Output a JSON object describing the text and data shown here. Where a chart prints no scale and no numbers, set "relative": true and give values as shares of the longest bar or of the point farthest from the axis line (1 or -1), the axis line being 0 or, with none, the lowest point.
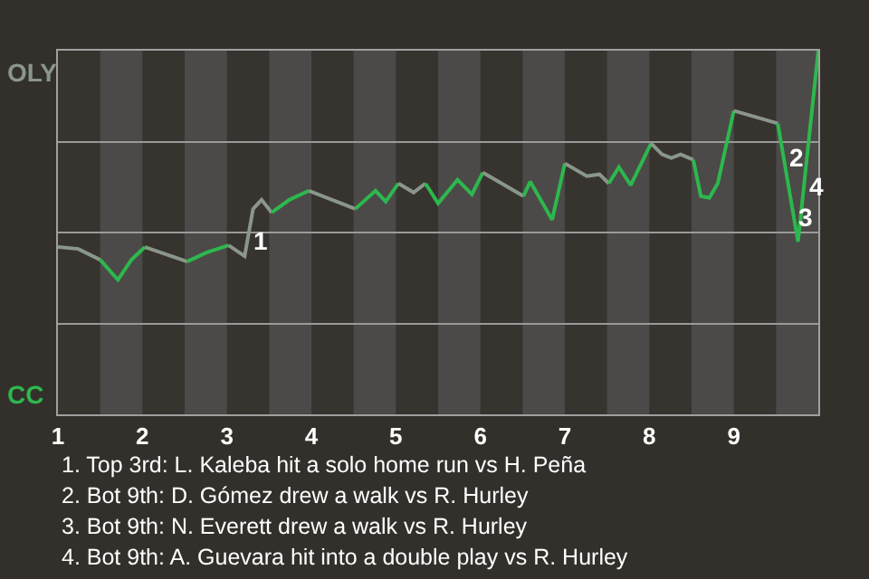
{
  "chart_data": {
    "type": "line",
    "relative": true,
    "xlim": [
      1,
      10
    ],
    "xticks": [
      1,
      2,
      3,
      4,
      5,
      6,
      7,
      8,
      9
    ],
    "grid": "y",
    "series": [
      {
        "color": "#8a968a",
        "x": [
          1.0,
          1.24,
          1.5
        ],
        "values": [
          0.46,
          0.455,
          0.425
        ]
      },
      {
        "color": "#2db84d",
        "x": [
          1.5,
          1.71,
          1.87,
          2.03
        ],
        "values": [
          0.425,
          0.37,
          0.425,
          0.46
        ]
      },
      {
        "color": "#8a968a",
        "x": [
          2.03,
          2.53
        ],
        "values": [
          0.46,
          0.42
        ]
      },
      {
        "color": "#2db84d",
        "x": [
          2.53,
          2.76,
          3.02
        ],
        "values": [
          0.42,
          0.445,
          0.465
        ]
      },
      {
        "color": "#8a968a",
        "x": [
          3.02,
          3.21,
          3.31,
          3.41,
          3.53
        ],
        "values": [
          0.465,
          0.435,
          0.565,
          0.59,
          0.555
        ]
      },
      {
        "color": "#2db84d",
        "x": [
          3.53,
          3.74,
          3.97
        ],
        "values": [
          0.555,
          0.59,
          0.615
        ]
      },
      {
        "color": "#8a968a",
        "x": [
          3.97,
          4.52
        ],
        "values": [
          0.615,
          0.565
        ]
      },
      {
        "color": "#2db84d",
        "x": [
          4.52,
          4.76,
          4.88,
          5.03
        ],
        "values": [
          0.565,
          0.615,
          0.585,
          0.635
        ]
      },
      {
        "color": "#8a968a",
        "x": [
          5.03,
          5.21,
          5.35
        ],
        "values": [
          0.635,
          0.61,
          0.635
        ]
      },
      {
        "color": "#2db84d",
        "x": [
          5.35,
          5.5,
          5.73,
          5.9,
          6.03
        ],
        "values": [
          0.635,
          0.58,
          0.645,
          0.605,
          0.665
        ]
      },
      {
        "color": "#8a968a",
        "x": [
          6.03,
          6.51
        ],
        "values": [
          0.665,
          0.6
        ]
      },
      {
        "color": "#2db84d",
        "x": [
          6.51,
          6.59,
          6.85,
          7.0
        ],
        "values": [
          0.6,
          0.64,
          0.535,
          0.69
        ]
      },
      {
        "color": "#8a968a",
        "x": [
          7.0,
          7.26,
          7.41,
          7.52
        ],
        "values": [
          0.69,
          0.655,
          0.66,
          0.635
        ]
      },
      {
        "color": "#2db84d",
        "x": [
          7.52,
          7.64,
          7.78,
          8.02
        ],
        "values": [
          0.635,
          0.68,
          0.63,
          0.745
        ]
      },
      {
        "color": "#8a968a",
        "x": [
          8.02,
          8.15,
          8.26,
          8.37,
          8.52
        ],
        "values": [
          0.745,
          0.715,
          0.705,
          0.715,
          0.7
        ]
      },
      {
        "color": "#2db84d",
        "x": [
          8.52,
          8.61,
          8.71,
          8.81,
          9.0
        ],
        "values": [
          0.7,
          0.6,
          0.595,
          0.635,
          0.835
        ]
      },
      {
        "color": "#8a968a",
        "x": [
          9.0,
          9.52
        ],
        "values": [
          0.835,
          0.8
        ]
      },
      {
        "color": "#2db84d",
        "x": [
          9.52,
          9.76,
          10.0
        ],
        "values": [
          0.8,
          0.475,
          1.0
        ]
      }
    ],
    "bands": [
      {
        "axis": "x",
        "from": 1.5,
        "to": 2,
        "color": "#4b4a48"
      },
      {
        "axis": "x",
        "from": 2.5,
        "to": 3,
        "color": "#4b4a48"
      },
      {
        "axis": "x",
        "from": 3.5,
        "to": 4,
        "color": "#4b4a48"
      },
      {
        "axis": "x",
        "from": 4.5,
        "to": 5,
        "color": "#4b4a48"
      },
      {
        "axis": "x",
        "from": 5.5,
        "to": 6,
        "color": "#4b4a48"
      },
      {
        "axis": "x",
        "from": 6.5,
        "to": 7,
        "color": "#4b4a48"
      },
      {
        "axis": "x",
        "from": 7.5,
        "to": 8,
        "color": "#4b4a48"
      },
      {
        "axis": "x",
        "from": 8.5,
        "to": 9,
        "color": "#4b4a48"
      },
      {
        "axis": "x",
        "from": 9.5,
        "to": 10,
        "color": "#4b4a48"
      }
    ],
    "annotations": [
      {
        "text": "1",
        "x": 3.245,
        "y": 0.48
      },
      {
        "text": "2",
        "x": 9.59,
        "y": 0.705
      },
      {
        "text": "3",
        "x": 9.71,
        "y": 0.54
      },
      {
        "text": "4",
        "x": 9.83,
        "y": 0.625
      },
      "OLY",
      "CC",
      "1. Top 3rd: L. Kaleba hit a solo home run vs H. Peña",
      "2. Bot 9th: D. Gómez drew a walk vs R. Hurley",
      "3. Bot 9th: N. Everett drew a walk vs R. Hurley",
      "4. Bot 9th: A. Guevara hit into a double play vs R. Hurley"
    ]
  }
}
